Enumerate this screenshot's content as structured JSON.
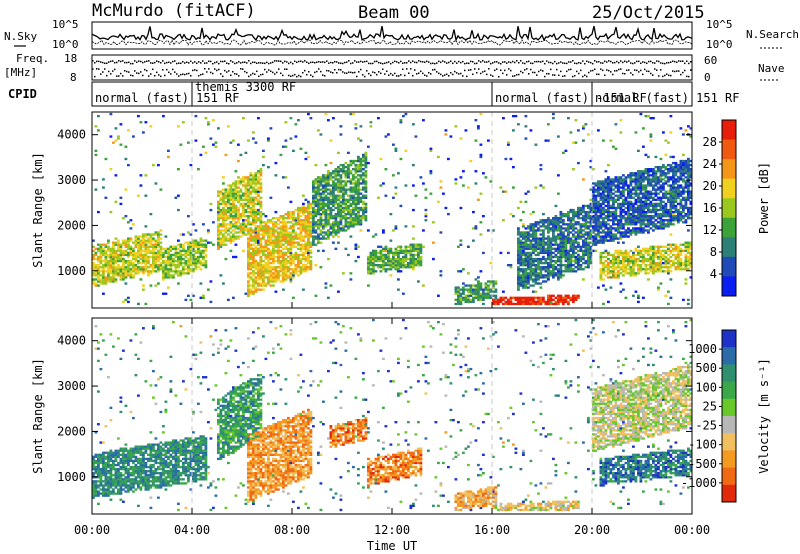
{
  "header": {
    "station": "McMurdo (fitACF)",
    "beam": "Beam 00",
    "date": "25/Oct/2015"
  },
  "status_panel": {
    "left_labels": {
      "nsky": "N.Sky",
      "freq": "Freq.",
      "freq_unit": "[MHz]",
      "cpid": "CPID"
    },
    "right_labels": {
      "nsearch": "N.Search",
      "nave": "Nave"
    },
    "noise_ticks_left": [
      "10^5",
      "10^0"
    ],
    "noise_ticks_right": [
      "10^5",
      "10^0"
    ],
    "freq_ticks": [
      "18",
      "8"
    ],
    "nave_ticks": [
      "60",
      "0"
    ],
    "cpid_segments": [
      {
        "label": "normal (fast) 151 RF",
        "start_hour": 0
      },
      {
        "label": "themis 3300 RF",
        "start_hour": 4
      },
      {
        "label": "normal (fast) -151 RF",
        "start_hour": 16
      },
      {
        "label": "normal (fast) 151 RF",
        "start_hour": 20
      }
    ]
  },
  "chart_data": [
    {
      "type": "heatmap",
      "name": "power",
      "ylabel": "Slant Range [km]",
      "yticks": [
        "1000",
        "2000",
        "3000",
        "4000"
      ],
      "ylim": [
        180,
        4500
      ],
      "xlim_hours": [
        0,
        24
      ],
      "colorbar_label": "Power [dB]",
      "colorbar_ticks": [
        "4",
        "8",
        "12",
        "16",
        "20",
        "24",
        "28"
      ],
      "colorbar_colors": [
        "#0a1ef0",
        "#1f4ab8",
        "#2e7f78",
        "#3ca23a",
        "#9ac81e",
        "#f0d020",
        "#f59618",
        "#ef5a10",
        "#e61e0a"
      ],
      "bands": [
        {
          "t0": 0.0,
          "t1": 2.8,
          "r0": 800,
          "r1": 1700,
          "level": 0.55
        },
        {
          "t0": 2.8,
          "t1": 4.6,
          "r0": 900,
          "r1": 1600,
          "level": 0.5
        },
        {
          "t0": 5.0,
          "t1": 6.8,
          "r0": 1700,
          "r1": 3000,
          "level": 0.55
        },
        {
          "t0": 6.2,
          "t1": 8.8,
          "r0": 700,
          "r1": 2200,
          "level": 0.62
        },
        {
          "t0": 8.8,
          "t1": 11.0,
          "r0": 1800,
          "r1": 3300,
          "level": 0.35
        },
        {
          "t0": 11.0,
          "t1": 13.2,
          "r0": 1000,
          "r1": 1500,
          "level": 0.4
        },
        {
          "t0": 14.5,
          "t1": 16.2,
          "r0": 300,
          "r1": 700,
          "level": 0.35
        },
        {
          "t0": 16.0,
          "t1": 19.5,
          "r0": 220,
          "r1": 420,
          "level": 0.95
        },
        {
          "t0": 17.0,
          "t1": 20.0,
          "r0": 800,
          "r1": 2200,
          "level": 0.25
        },
        {
          "t0": 20.3,
          "t1": 24.0,
          "r0": 900,
          "r1": 1500,
          "level": 0.55
        },
        {
          "t0": 20.0,
          "t1": 24.0,
          "r0": 1800,
          "r1": 3200,
          "level": 0.2
        }
      ]
    },
    {
      "type": "heatmap",
      "name": "velocity",
      "ylabel": "Slant Range [km]",
      "yticks": [
        "1000",
        "2000",
        "3000",
        "4000"
      ],
      "ylim": [
        180,
        4500
      ],
      "xlim_hours": [
        0,
        24
      ],
      "colorbar_label": "Velocity [m s⁻¹]",
      "colorbar_ticks": [
        "1000",
        "500",
        "100",
        "25",
        "-25",
        "-100",
        "-500",
        "-1000"
      ],
      "colorbar_colors": [
        "#1e32c8",
        "#2a6ca8",
        "#2f8f6f",
        "#3aa84a",
        "#68c82a",
        "#b8b8b8",
        "#f0c060",
        "#f59a20",
        "#f06a14",
        "#e02a0a"
      ],
      "bands": [
        {
          "t0": 0.0,
          "t1": 4.6,
          "r0": 700,
          "r1": 1700,
          "level": 0.25
        },
        {
          "t0": 5.0,
          "t1": 6.8,
          "r0": 1600,
          "r1": 3000,
          "level": 0.3
        },
        {
          "t0": 6.2,
          "t1": 8.8,
          "r0": 700,
          "r1": 2200,
          "level": 0.75
        },
        {
          "t0": 9.5,
          "t1": 11.0,
          "r0": 1700,
          "r1": 2200,
          "level": 0.8
        },
        {
          "t0": 11.0,
          "t1": 13.2,
          "r0": 900,
          "r1": 1500,
          "level": 0.78
        },
        {
          "t0": 14.5,
          "t1": 16.2,
          "r0": 300,
          "r1": 700,
          "level": 0.7
        },
        {
          "t0": 16.0,
          "t1": 19.5,
          "r0": 220,
          "r1": 420,
          "level": 0.6
        },
        {
          "t0": 20.3,
          "t1": 24.0,
          "r0": 900,
          "r1": 1500,
          "level": 0.2
        },
        {
          "t0": 20.0,
          "t1": 24.0,
          "r0": 1800,
          "r1": 3200,
          "level": 0.55
        }
      ]
    }
  ],
  "x_axis": {
    "ticks": [
      "00:00",
      "04:00",
      "08:00",
      "12:00",
      "16:00",
      "20:00",
      "00:00"
    ],
    "label": "Time UT"
  }
}
